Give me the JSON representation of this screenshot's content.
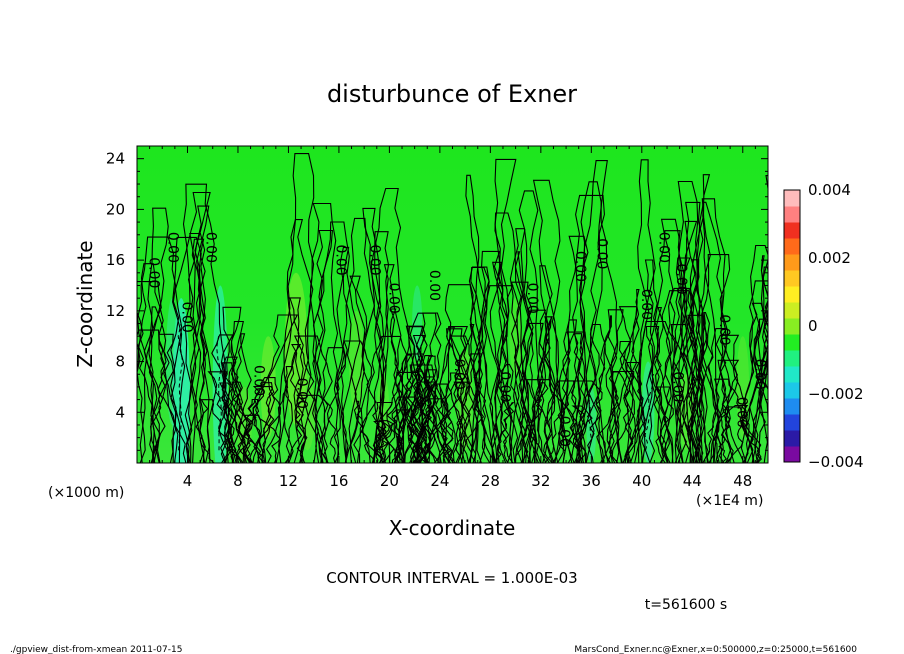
{
  "chart_data": {
    "type": "heatmap",
    "title": "disturbunce of Exner",
    "xlabel": "X-coordinate",
    "ylabel": "Z-coordinate",
    "x_unit_left": "(×1000 m)",
    "x_unit_right": "(×1E4 m)",
    "xticks": [
      4,
      8,
      12,
      16,
      20,
      24,
      28,
      32,
      36,
      40,
      44,
      48
    ],
    "yticks": [
      4,
      8,
      12,
      16,
      20,
      24
    ],
    "xlim": [
      0,
      50
    ],
    "ylim": [
      0,
      25
    ],
    "colorbar": {
      "ticks": [
        {
          "value": 0.004,
          "label": "0.004"
        },
        {
          "value": 0.002,
          "label": "0.002"
        },
        {
          "value": 0,
          "label": "0"
        },
        {
          "value": -0.002,
          "label": "−0.002"
        },
        {
          "value": -0.004,
          "label": "−0.004"
        }
      ],
      "range": [
        -0.004,
        0.004
      ],
      "colors": [
        "#7a0aa0",
        "#2b1aa6",
        "#2244dd",
        "#1e8cf0",
        "#1cc8e8",
        "#20e8c8",
        "#20f080",
        "#22ee22",
        "#88ee22",
        "#ccee22",
        "#ffee22",
        "#ffc822",
        "#ff9a1a",
        "#ff6a1a",
        "#f03020",
        "#ff8080",
        "#ffbcbc"
      ]
    },
    "contour_labels": [
      {
        "x": 1.0,
        "z": 15.0,
        "text": "0.00"
      },
      {
        "x": 2.5,
        "z": 17.0,
        "text": "0.00"
      },
      {
        "x": 3.6,
        "z": 11.5,
        "text": "0.00"
      },
      {
        "x": 5.5,
        "z": 17.0,
        "text": "0.00"
      },
      {
        "x": 9.3,
        "z": 6.5,
        "text": "0.00"
      },
      {
        "x": 12.7,
        "z": 5.5,
        "text": "0.00"
      },
      {
        "x": 15.8,
        "z": 16.0,
        "text": "0.00"
      },
      {
        "x": 18.5,
        "z": 16.0,
        "text": "0.00"
      },
      {
        "x": 20.0,
        "z": 13.0,
        "text": "0.00"
      },
      {
        "x": 23.2,
        "z": 14.0,
        "text": "0.00"
      },
      {
        "x": 25.2,
        "z": 7.0,
        "text": "0.00"
      },
      {
        "x": 28.8,
        "z": 6.0,
        "text": "0.00"
      },
      {
        "x": 31.0,
        "z": 13.0,
        "text": "0.00"
      },
      {
        "x": 33.5,
        "z": 2.5,
        "text": "0.00"
      },
      {
        "x": 34.8,
        "z": 15.5,
        "text": "0.00"
      },
      {
        "x": 36.5,
        "z": 16.5,
        "text": "0.00"
      },
      {
        "x": 40.0,
        "z": 12.5,
        "text": "0.00"
      },
      {
        "x": 41.4,
        "z": 17.0,
        "text": "0.00"
      },
      {
        "x": 42.5,
        "z": 6.0,
        "text": "0.00"
      },
      {
        "x": 42.8,
        "z": 14.5,
        "text": "0.00"
      },
      {
        "x": 46.2,
        "z": 10.5,
        "text": "0.00"
      },
      {
        "x": 47.6,
        "z": 4.0,
        "text": "0.00"
      },
      {
        "x": 49.0,
        "z": 7.0,
        "text": "0.00"
      }
    ]
  },
  "contour_interval_label": "CONTOUR INTERVAL = 1.000E-03",
  "time_label": "t=561600 s",
  "footer_left": "./gpview_dist-from-xmean  2011-07-15",
  "footer_right": "MarsCond_Exner.nc@Exner,x=0:500000,z=0:25000,t=561600"
}
